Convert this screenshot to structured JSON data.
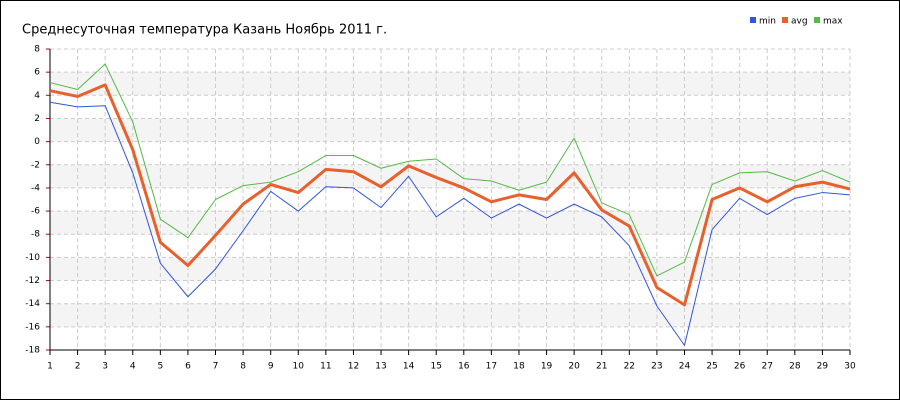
{
  "chart_data": {
    "type": "line",
    "title": "Среднесуточная температура Казань  Ноябрь 2011 г.",
    "x": [
      1,
      2,
      3,
      4,
      5,
      6,
      7,
      8,
      9,
      10,
      11,
      12,
      13,
      14,
      15,
      16,
      17,
      18,
      19,
      20,
      21,
      22,
      23,
      24,
      25,
      26,
      27,
      28,
      29,
      30
    ],
    "xlim": [
      1,
      30
    ],
    "xticks": [
      1,
      2,
      3,
      4,
      5,
      6,
      7,
      8,
      9,
      10,
      11,
      12,
      13,
      14,
      15,
      16,
      17,
      18,
      19,
      20,
      21,
      22,
      23,
      24,
      25,
      26,
      27,
      28,
      29,
      30
    ],
    "ylim": [
      -18,
      8
    ],
    "yticks": [
      -18,
      -16,
      -14,
      -12,
      -10,
      -8,
      -6,
      -4,
      -2,
      0,
      2,
      4,
      6,
      8
    ],
    "grid": true,
    "legend": "top-right",
    "series": [
      {
        "name": "min",
        "color": "#3355dd",
        "values": [
          3.4,
          3.0,
          3.1,
          -2.7,
          -10.5,
          -13.4,
          -11.0,
          -7.7,
          -4.3,
          -6.0,
          -3.9,
          -4.0,
          -5.7,
          -3.0,
          -6.5,
          -4.9,
          -6.6,
          -5.4,
          -6.6,
          -5.4,
          -6.5,
          -9.0,
          -14.2,
          -17.6,
          -7.6,
          -4.9,
          -6.3,
          -4.9,
          -4.4,
          -4.6
        ]
      },
      {
        "name": "avg",
        "color": "#e8602c",
        "values": [
          4.4,
          3.9,
          4.9,
          -0.7,
          -8.7,
          -10.7,
          -8.1,
          -5.4,
          -3.7,
          -4.4,
          -2.4,
          -2.6,
          -3.9,
          -2.1,
          -3.1,
          -4.0,
          -5.2,
          -4.6,
          -5.0,
          -2.7,
          -5.9,
          -7.3,
          -12.6,
          -14.1,
          -5.0,
          -4.0,
          -5.2,
          -3.9,
          -3.5,
          -4.1
        ]
      },
      {
        "name": "max",
        "color": "#55bb44",
        "values": [
          5.1,
          4.5,
          6.7,
          1.7,
          -6.7,
          -8.3,
          -5.0,
          -3.8,
          -3.5,
          -2.6,
          -1.2,
          -1.2,
          -2.3,
          -1.7,
          -1.5,
          -3.2,
          -3.4,
          -4.2,
          -3.5,
          0.3,
          -5.3,
          -6.3,
          -11.6,
          -10.4,
          -3.7,
          -2.7,
          -2.6,
          -3.4,
          -2.5,
          -3.5
        ]
      }
    ]
  }
}
